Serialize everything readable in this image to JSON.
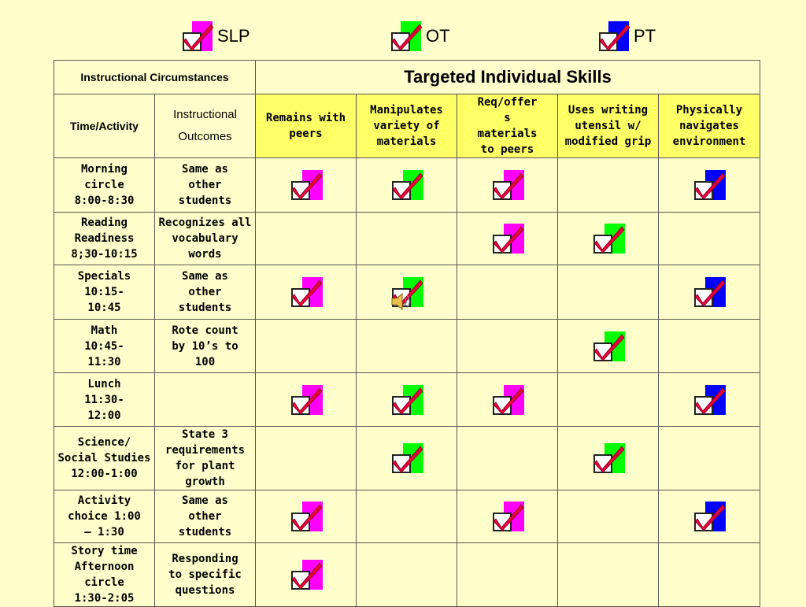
{
  "colors": {
    "slp": "#FF00FF",
    "ot": "#00FF00",
    "pt": "#0000FF",
    "check": "#E4003A",
    "header_fill": "#FFFF66",
    "background": "#FFFFCC"
  },
  "legend": [
    {
      "key": "slp",
      "label": "SLP",
      "icon": "checkbox-magenta-icon"
    },
    {
      "key": "ot",
      "label": "OT",
      "icon": "checkbox-green-icon"
    },
    {
      "key": "pt",
      "label": "PT",
      "icon": "checkbox-blue-icon"
    }
  ],
  "table": {
    "header_left": "Instructional Circumstances",
    "header_title": "Targeted Individual Skills",
    "col_time": "Time/Activity",
    "col_outcomes": "Instructional Outcomes",
    "skills": [
      "Remains with peers",
      "Manipulates variety of materials",
      "Req/offer s materials to peers",
      "Uses writing utensil w/ modified grip",
      "Physically navigates environment"
    ],
    "rows": [
      {
        "time": "Morning circle 8:00-8:30",
        "outcome": "Same as other students",
        "checks": [
          "slp",
          "ot",
          "slp",
          "",
          "pt"
        ]
      },
      {
        "time": "Reading Readiness 8;30-10:15",
        "outcome": "Recognizes all vocabulary words",
        "checks": [
          "",
          "",
          "slp",
          "ot",
          ""
        ]
      },
      {
        "time": "Specials 10:15-10:45",
        "outcome": "Same as other students",
        "checks": [
          "slp",
          "ot",
          "",
          "",
          "pt"
        ]
      },
      {
        "time": "Math 10:45-11:30",
        "outcome": "Rote count by 10’s to 100",
        "checks": [
          "",
          "",
          "",
          "ot",
          ""
        ]
      },
      {
        "time": "Lunch 11:30-12:00",
        "outcome": "",
        "checks": [
          "slp",
          "ot",
          "slp",
          "",
          "pt"
        ]
      },
      {
        "time": "Science/ Social Studies 12:00-1:00",
        "outcome": "State 3 requirements for plant growth",
        "checks": [
          "",
          "ot",
          "",
          "ot",
          ""
        ]
      },
      {
        "time": "Activity choice 1:00 – 1:30",
        "outcome": "Same as other students",
        "checks": [
          "slp",
          "",
          "slp",
          "",
          "pt"
        ]
      },
      {
        "time": "Story time Afternoon circle 1:30-2:05",
        "outcome": "Responding to specific questions",
        "checks": [
          "slp",
          "",
          "",
          "",
          ""
        ]
      }
    ]
  },
  "speaker_icon": "speaker-icon"
}
